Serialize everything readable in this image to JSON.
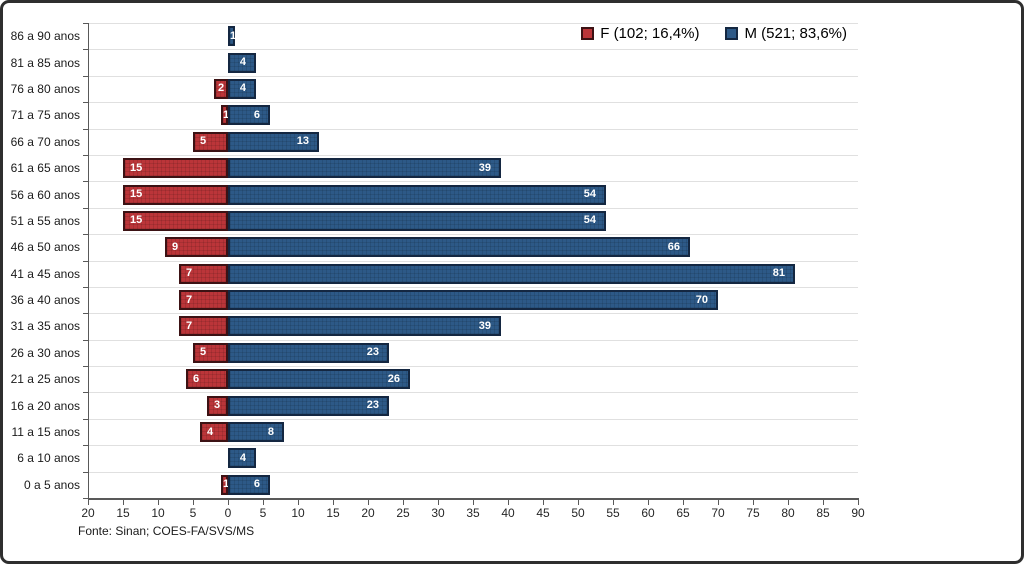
{
  "chart_data": {
    "type": "bar",
    "orientation": "horizontal-diverging",
    "categories": [
      "86 a 90 anos",
      "81 a 85 anos",
      "76 a 80 anos",
      "71 a 75 anos",
      "66 a 70 anos",
      "61 a 65 anos",
      "56 a 60 anos",
      "51 a 55 anos",
      "46 a 50 anos",
      "41 a 45 anos",
      "36 a 40 anos",
      "31 a 35 anos",
      "26 a 30 anos",
      "21 a 25 anos",
      "16 a 20 anos",
      "11 a 15 anos",
      "6 a 10 anos",
      "0 a 5 anos"
    ],
    "series": [
      {
        "name": "F",
        "direction": "left",
        "values": [
          0,
          0,
          2,
          1,
          5,
          15,
          15,
          15,
          9,
          7,
          7,
          7,
          5,
          6,
          3,
          4,
          0,
          1
        ]
      },
      {
        "name": "M",
        "direction": "right",
        "values": [
          1,
          4,
          4,
          6,
          13,
          39,
          54,
          54,
          66,
          81,
          70,
          39,
          23,
          26,
          23,
          8,
          4,
          6
        ]
      }
    ],
    "legend": [
      {
        "label": "F (102; 16,4%)",
        "color": "#bb3539",
        "border": "#3c1214"
      },
      {
        "label": "M (521; 83,6%)",
        "color": "#2d5987",
        "border": "#142741"
      }
    ],
    "x_axis": {
      "min": -20,
      "max": 90,
      "step": 5,
      "tick_labels": [
        "20",
        "15",
        "10",
        "5",
        "0",
        "5",
        "10",
        "15",
        "20",
        "25",
        "30",
        "35",
        "40",
        "45",
        "50",
        "55",
        "60",
        "65",
        "70",
        "75",
        "80",
        "85",
        "90"
      ]
    },
    "grid": "horizontal",
    "legend_position": "top-right",
    "source_note": "Fonte: Sinan; COES-FA/SVS/MS"
  },
  "colors": {
    "f_fill": "#bb3539",
    "f_border": "#3c1214",
    "m_fill": "#2d5987",
    "m_border": "#142741",
    "gridline": "#e0e0e0",
    "axis": "#595959",
    "value_label": "#ffffff"
  }
}
